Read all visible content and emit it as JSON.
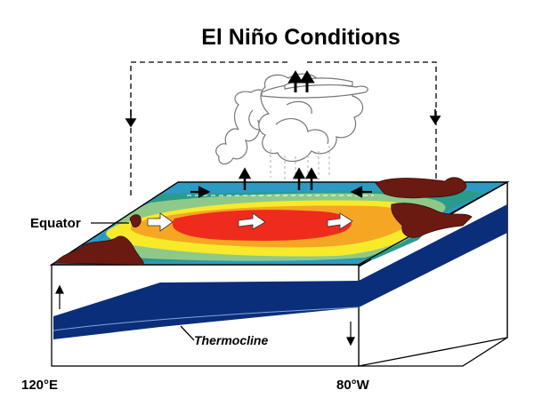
{
  "title": "El Niño Conditions",
  "labels": {
    "equator": "Equator",
    "thermocline": "Thermocline",
    "longitude_west": "120°E",
    "longitude_east": "80°W"
  },
  "colors": {
    "land": "#6b1a12",
    "ocean_deep": "#0b2e7a",
    "warm_core": "#ef2b1e",
    "warm": "#f5a623",
    "mid": "#f7ea2a",
    "cool_green": "#8fc98a",
    "cool_teal": "#2a9a8c",
    "cool_blue": "#2c9bc4"
  }
}
